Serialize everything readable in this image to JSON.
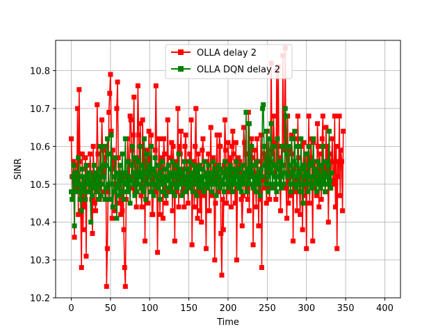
{
  "chart_data": {
    "type": "line",
    "xlabel": "Time",
    "ylabel": "SINR",
    "xlim": [
      -20,
      420
    ],
    "ylim": [
      10.2,
      10.88
    ],
    "xticks": [
      0,
      50,
      100,
      150,
      200,
      250,
      300,
      350,
      400
    ],
    "yticks": [
      10.2,
      10.3,
      10.4,
      10.5,
      10.6,
      10.7,
      10.8
    ],
    "xtick_labels": [
      "0",
      "50",
      "100",
      "150",
      "200",
      "250",
      "300",
      "350",
      "400"
    ],
    "ytick_labels": [
      "10.2",
      "10.3",
      "10.4",
      "10.5",
      "10.6",
      "10.7",
      "10.8"
    ],
    "grid": true,
    "legend_position": "top-center",
    "x_start": 0,
    "x_step": 1,
    "series": [
      {
        "name": "OLLA delay 2",
        "color": "#ff0000",
        "marker": "square",
        "values": [
          10.62,
          10.52,
          10.46,
          10.56,
          10.36,
          10.55,
          10.53,
          10.49,
          10.7,
          10.42,
          10.75,
          10.56,
          10.43,
          10.28,
          10.58,
          10.38,
          10.51,
          10.44,
          10.57,
          10.31,
          10.55,
          10.52,
          10.51,
          10.48,
          10.58,
          10.53,
          10.46,
          10.37,
          10.6,
          10.51,
          10.45,
          10.43,
          10.5,
          10.71,
          10.58,
          10.49,
          10.46,
          10.52,
          10.54,
          10.67,
          10.59,
          10.53,
          10.48,
          10.57,
          10.6,
          10.23,
          10.33,
          10.48,
          10.69,
          10.74,
          10.79,
          10.64,
          10.41,
          10.59,
          10.54,
          10.56,
          10.43,
          10.5,
          10.7,
          10.77,
          10.57,
          10.45,
          10.53,
          10.42,
          10.48,
          10.43,
          10.52,
          10.38,
          10.28,
          10.23,
          10.46,
          10.5,
          10.62,
          10.56,
          10.49,
          10.68,
          10.67,
          10.59,
          10.49,
          10.63,
          10.73,
          10.48,
          10.56,
          10.44,
          10.57,
          10.76,
          10.63,
          10.52,
          10.66,
          10.47,
          10.44,
          10.67,
          10.53,
          10.62,
          10.35,
          10.59,
          10.5,
          10.56,
          10.45,
          10.64,
          10.57,
          10.53,
          10.63,
          10.42,
          10.42,
          10.52,
          10.48,
          10.59,
          10.76,
          10.55,
          10.32,
          10.52,
          10.62,
          10.42,
          10.52,
          10.57,
          10.54,
          10.41,
          10.62,
          10.58,
          10.49,
          10.45,
          10.52,
          10.67,
          10.51,
          10.48,
          10.52,
          10.57,
          10.61,
          10.43,
          10.6,
          10.54,
          10.35,
          10.56,
          10.48,
          10.52,
          10.7,
          10.44,
          10.6,
          10.58,
          10.64,
          10.52,
          10.48,
          10.54,
          10.44,
          10.6,
          10.63,
          10.5,
          10.56,
          10.45,
          10.53,
          10.58,
          10.52,
          10.67,
          10.34,
          10.5,
          10.56,
          10.44,
          10.6,
          10.7,
          10.48,
          10.41,
          10.58,
          10.55,
          10.43,
          10.5,
          10.4,
          10.59,
          10.62,
          10.52,
          10.47,
          10.5,
          10.33,
          10.56,
          10.49,
          10.58,
          10.43,
          10.52,
          10.65,
          10.47,
          10.51,
          10.57,
          10.52,
          10.3,
          10.45,
          10.55,
          10.63,
          10.48,
          10.5,
          10.63,
          10.6,
          10.37,
          10.26,
          10.46,
          10.38,
          10.55,
          10.67,
          10.59,
          10.45,
          10.52,
          10.61,
          10.56,
          10.48,
          10.57,
          10.44,
          10.6,
          10.64,
          10.58,
          10.53,
          10.45,
          10.61,
          10.3,
          10.49,
          10.57,
          10.53,
          10.56,
          10.52,
          10.46,
          10.39,
          10.47,
          10.65,
          10.61,
          10.5,
          10.58,
          10.49,
          10.46,
          10.69,
          10.43,
          10.54,
          10.6,
          10.62,
          10.57,
          10.34,
          10.53,
          10.59,
          10.5,
          10.44,
          10.62,
          10.56,
          10.39,
          10.52,
          10.46,
          10.63,
          10.28,
          10.51,
          10.58,
          10.6,
          10.49,
          10.57,
          10.45,
          10.64,
          10.53,
          10.49,
          10.46,
          10.56,
          10.82,
          10.59,
          10.58,
          10.68,
          10.61,
          10.52,
          10.46,
          10.8,
          10.6,
          10.81,
          10.57,
          10.52,
          10.43,
          10.6,
          10.55,
          10.84,
          10.59,
          10.64,
          10.86,
          10.49,
          10.41,
          10.68,
          10.45,
          10.59,
          10.52,
          10.47,
          10.63,
          10.58,
          10.35,
          10.54,
          10.62,
          10.48,
          10.51,
          10.43,
          10.68,
          10.57,
          10.5,
          10.42,
          10.6,
          10.52,
          10.38,
          10.55,
          10.61,
          10.47,
          10.52,
          10.33,
          10.58,
          10.53,
          10.68,
          10.45,
          10.57,
          10.62,
          10.52,
          10.35,
          10.61,
          10.49,
          10.56,
          10.52,
          10.47,
          10.66,
          10.6,
          10.44,
          10.58,
          10.52,
          10.46,
          10.62,
          10.68,
          10.51,
          10.55,
          10.48,
          10.65,
          10.52,
          10.6,
          10.4,
          10.55,
          10.58,
          10.49,
          10.56,
          10.62,
          10.51,
          10.5,
          10.68,
          10.44,
          10.6,
          10.33,
          10.56,
          10.52,
          10.68,
          10.47,
          10.59,
          10.56,
          10.43,
          10.64
        ],
        "label_prefix": "olla-point"
      },
      {
        "name": "OLLA DQN delay 2",
        "color": "#008000",
        "marker": "square",
        "values": [
          10.48,
          10.46,
          10.52,
          10.55,
          10.39,
          10.53,
          10.5,
          10.51,
          10.48,
          10.57,
          10.52,
          10.46,
          10.5,
          10.43,
          10.54,
          10.48,
          10.52,
          10.5,
          10.46,
          10.55,
          10.5,
          10.52,
          10.48,
          10.53,
          10.51,
          10.4,
          10.5,
          10.47,
          10.52,
          10.55,
          10.49,
          10.5,
          10.53,
          10.48,
          10.52,
          10.46,
          10.54,
          10.6,
          10.47,
          10.5,
          10.55,
          10.6,
          10.52,
          10.46,
          10.49,
          10.55,
          10.62,
          10.58,
          10.5,
          10.46,
          10.54,
          10.63,
          10.5,
          10.44,
          10.48,
          10.52,
          10.57,
          10.49,
          10.41,
          10.53,
          10.5,
          10.47,
          10.55,
          10.52,
          10.48,
          10.58,
          10.51,
          10.46,
          10.53,
          10.62,
          10.5,
          10.48,
          10.56,
          10.49,
          10.52,
          10.45,
          10.51,
          10.55,
          10.6,
          10.53,
          10.5,
          10.47,
          10.57,
          10.52,
          10.48,
          10.56,
          10.5,
          10.53,
          10.6,
          10.49,
          10.52,
          10.55,
          10.48,
          10.62,
          10.5,
          10.46,
          10.53,
          10.58,
          10.5,
          10.55,
          10.52,
          10.48,
          10.6,
          10.54,
          10.5,
          10.47,
          10.53,
          10.57,
          10.5,
          10.52,
          10.49,
          10.55,
          10.51,
          10.46,
          10.53,
          10.5,
          10.56,
          10.48,
          10.52,
          10.5,
          10.54,
          10.47,
          10.52,
          10.51,
          10.55,
          10.49,
          10.53,
          10.5,
          10.48,
          10.56,
          10.52,
          10.5,
          10.47,
          10.53,
          10.55,
          10.49,
          10.52,
          10.58,
          10.5,
          10.54,
          10.51,
          10.47,
          10.53,
          10.5,
          10.56,
          10.52,
          10.48,
          10.54,
          10.5,
          10.52,
          10.49,
          10.56,
          10.51,
          10.53,
          10.5,
          10.48,
          10.55,
          10.52,
          10.5,
          10.54,
          10.47,
          10.53,
          10.5,
          10.55,
          10.52,
          10.49,
          10.51,
          10.54,
          10.5,
          10.48,
          10.56,
          10.52,
          10.5,
          10.53,
          10.49,
          10.55,
          10.51,
          10.5,
          10.53,
          10.48,
          10.52,
          10.56,
          10.5,
          10.54,
          10.51,
          10.47,
          10.53,
          10.5,
          10.55,
          10.52,
          10.49,
          10.54,
          10.5,
          10.51,
          10.53,
          10.48,
          10.56,
          10.52,
          10.5,
          10.54,
          10.51,
          10.49,
          10.53,
          10.55,
          10.5,
          10.52,
          10.48,
          10.54,
          10.51,
          10.53,
          10.5,
          10.56,
          10.52,
          10.49,
          10.54,
          10.5,
          10.52,
          10.48,
          10.55,
          10.51,
          10.53,
          10.5,
          10.52,
          10.69,
          10.48,
          10.54,
          10.51,
          10.66,
          10.5,
          10.53,
          10.6,
          10.52,
          10.49,
          10.55,
          10.5,
          10.52,
          10.48,
          10.56,
          10.51,
          10.53,
          10.5,
          10.47,
          10.54,
          10.52,
          10.7,
          10.71,
          10.6,
          10.55,
          10.5,
          10.64,
          10.52,
          10.48,
          10.62,
          10.54,
          10.5,
          10.66,
          10.53,
          10.49,
          10.6,
          10.55,
          10.5,
          10.52,
          10.48,
          10.62,
          10.54,
          10.5,
          10.56,
          10.52,
          10.49,
          10.6,
          10.55,
          10.5,
          10.53,
          10.7,
          10.68,
          10.58,
          10.52,
          10.6,
          10.55,
          10.5,
          10.48,
          10.62,
          10.53,
          10.5,
          10.56,
          10.64,
          10.52,
          10.49,
          10.55,
          10.6,
          10.5,
          10.53,
          10.48,
          10.62,
          10.54,
          10.5,
          10.45,
          10.55,
          10.52,
          10.58,
          10.5,
          10.53,
          10.48,
          10.6,
          10.55,
          10.5,
          10.52,
          10.49,
          10.56,
          10.62,
          10.5,
          10.54,
          10.51,
          10.48,
          10.53,
          10.56,
          10.5,
          10.52,
          10.49,
          10.55,
          10.51,
          10.6,
          10.5,
          10.53,
          10.48,
          10.56,
          10.52,
          10.5,
          10.55,
          10.64,
          10.51,
          10.49,
          10.53
        ],
        "label_prefix": "dqn-point"
      }
    ]
  }
}
